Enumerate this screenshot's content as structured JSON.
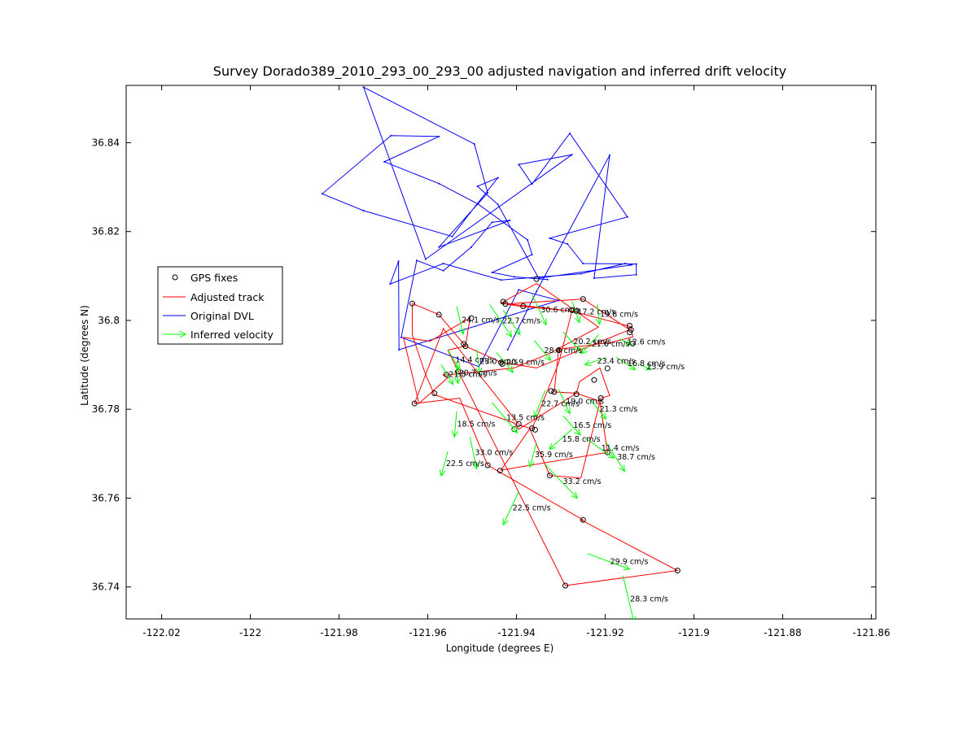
{
  "chart_data": {
    "type": "line",
    "title": "Survey Dorado389_2010_293_00_293_00 adjusted navigation and inferred drift velocity",
    "xlabel": "Longitude (degrees E)",
    "ylabel": "Latitude (degrees N)",
    "xlim": [
      -122.028,
      -121.859
    ],
    "ylim": [
      36.7328,
      36.8529
    ],
    "xticks": [
      -122.02,
      -122.0,
      -121.98,
      -121.96,
      -121.94,
      -121.92,
      -121.9,
      -121.88,
      -121.86
    ],
    "xtick_labels": [
      "-122.02",
      "-122",
      "-121.98",
      "-121.96",
      "-121.94",
      "-121.92",
      "-121.9",
      "-121.88",
      "-121.86"
    ],
    "yticks": [
      36.74,
      36.76,
      36.78,
      36.8,
      36.82,
      36.84
    ],
    "ytick_labels": [
      "36.74",
      "36.76",
      "36.78",
      "36.8",
      "36.82",
      "36.84"
    ],
    "grid": false,
    "legend_position": "left",
    "legend": [
      "GPS fixes",
      "Adjusted track",
      "Original DVL",
      "Inferred velocity"
    ],
    "colors": {
      "gps": "#000000",
      "adjusted": "#ff0000",
      "dvl": "#0000ff",
      "velocity": "#00ff00"
    },
    "dvl_track": [
      [
        -121.942,
        36.7934
      ],
      [
        -121.9355,
        36.8065
      ],
      [
        -121.919,
        36.8372
      ],
      [
        -121.9225,
        36.8095
      ],
      [
        -121.913,
        36.8103
      ],
      [
        -121.913,
        36.8127
      ],
      [
        -121.925,
        36.8128
      ],
      [
        -121.9285,
        36.8172
      ],
      [
        -121.9325,
        36.8185
      ],
      [
        -121.915,
        36.8233
      ],
      [
        -121.928,
        36.8421
      ],
      [
        -121.9365,
        36.8307
      ],
      [
        -121.9395,
        36.8351
      ],
      [
        -121.9275,
        36.8373
      ],
      [
        -121.9605,
        36.8138
      ],
      [
        -121.9745,
        36.8525
      ],
      [
        -121.9495,
        36.8397
      ],
      [
        -121.9465,
        36.8287
      ],
      [
        -121.9575,
        36.8165
      ],
      [
        -121.9415,
        36.8225
      ],
      [
        -121.9455,
        36.8221
      ],
      [
        -121.9502,
        36.8165
      ],
      [
        -121.9565,
        36.8112
      ],
      [
        -121.9625,
        36.8135
      ],
      [
        -121.966,
        36.7962
      ],
      [
        -121.9485,
        36.7896
      ],
      [
        -121.9395,
        36.8069
      ],
      [
        -121.9305,
        36.8045
      ],
      [
        -121.9665,
        36.7934
      ],
      [
        -121.9666,
        36.8133
      ],
      [
        -121.9685,
        36.8082
      ],
      [
        -121.9565,
        36.8128
      ],
      [
        -121.9435,
        36.8091
      ],
      [
        -121.9255,
        36.8105
      ],
      [
        -121.9155,
        36.8128
      ],
      [
        -121.914,
        36.8125
      ],
      [
        -121.935,
        36.8095
      ],
      [
        -121.9442,
        36.8261
      ],
      [
        -121.9488,
        36.8302
      ],
      [
        -121.9442,
        36.8321
      ],
      [
        -121.9505,
        36.8242
      ],
      [
        -121.9545,
        36.8189
      ],
      [
        -121.9745,
        36.8247
      ],
      [
        -121.9838,
        36.8285
      ],
      [
        -121.9683,
        36.8416
      ],
      [
        -121.9575,
        36.8414
      ],
      [
        -121.9698,
        36.8357
      ],
      [
        -121.9575,
        36.8308
      ],
      [
        -121.9487,
        36.8262
      ],
      [
        -121.9375,
        36.8181
      ],
      [
        -121.9365,
        36.8148
      ],
      [
        -121.9455,
        36.8108
      ],
      [
        -121.9405,
        36.8098
      ],
      [
        -121.933,
        36.8092
      ]
    ],
    "adjusted_track": [
      [
        -121.929,
        36.7403
      ],
      [
        -121.9037,
        36.7437
      ],
      [
        -121.9255,
        36.7551
      ],
      [
        -121.925,
        36.7551
      ],
      [
        -121.9465,
        36.7674
      ],
      [
        -121.9528,
        36.7825
      ],
      [
        -121.963,
        36.7813
      ],
      [
        -121.9565,
        36.7982
      ],
      [
        -121.9555,
        36.7967
      ],
      [
        -121.9393,
        36.7764
      ],
      [
        -121.9365,
        36.7756
      ],
      [
        -121.9305,
        36.7904
      ],
      [
        -121.9275,
        36.8021
      ],
      [
        -121.9393,
        36.8032
      ],
      [
        -121.9425,
        36.8037
      ],
      [
        -121.925,
        36.8048
      ],
      [
        -121.9145,
        36.7979
      ],
      [
        -121.9355,
        36.7893
      ],
      [
        -121.9435,
        36.7906
      ],
      [
        -121.9515,
        36.7942
      ],
      [
        -121.9575,
        36.8013
      ],
      [
        -121.9635,
        36.8038
      ],
      [
        -121.9635,
        36.7967
      ],
      [
        -121.9605,
        36.7878
      ],
      [
        -121.9585,
        36.7833
      ],
      [
        -121.9405,
        36.7769
      ],
      [
        -121.9395,
        36.7755
      ],
      [
        -121.9265,
        36.7836
      ],
      [
        -121.9258,
        36.7862
      ],
      [
        -121.9212,
        36.7893
      ],
      [
        -121.919,
        36.7831
      ],
      [
        -121.921,
        36.7825
      ],
      [
        -121.9255,
        36.7645
      ],
      [
        -121.9325,
        36.7651
      ],
      [
        -121.937,
        36.7756
      ],
      [
        -121.9435,
        36.7663
      ],
      [
        -121.9195,
        36.7703
      ],
      [
        -121.9212,
        36.7818
      ],
      [
        -121.9265,
        36.7836
      ],
      [
        -121.9315,
        36.7839
      ],
      [
        -121.9305,
        36.7935
      ],
      [
        -121.9185,
        36.7951
      ],
      [
        -121.9138,
        36.7963
      ],
      [
        -121.9142,
        36.7986
      ],
      [
        -121.9275,
        36.8021
      ],
      [
        -121.9435,
        36.8039
      ],
      [
        -121.9355,
        36.8083
      ],
      [
        -121.9215,
        36.7985
      ],
      [
        -121.9325,
        36.7926
      ],
      [
        -121.9405,
        36.7893
      ],
      [
        -121.955,
        36.7878
      ],
      [
        -121.9565,
        36.7877
      ],
      [
        -121.9555,
        36.7871
      ],
      [
        -121.962,
        36.7813
      ],
      [
        -121.9655,
        36.7962
      ],
      [
        -121.9595,
        36.7953
      ],
      [
        -121.9505,
        36.8006
      ],
      [
        -121.9515,
        36.7942
      ],
      [
        -121.9555,
        36.7933
      ],
      [
        -121.929,
        36.7403
      ]
    ],
    "gps_fixes": [
      [
        -121.929,
        36.7403
      ],
      [
        -121.9037,
        36.7437
      ],
      [
        -121.925,
        36.7551
      ],
      [
        -121.9465,
        36.7674
      ],
      [
        -121.9437,
        36.7662
      ],
      [
        -121.9325,
        36.7651
      ],
      [
        -121.9195,
        36.7703
      ],
      [
        -121.9405,
        36.7755
      ],
      [
        -121.9395,
        36.7767
      ],
      [
        -121.9365,
        36.7757
      ],
      [
        -121.9358,
        36.7754
      ],
      [
        -121.963,
        36.7813
      ],
      [
        -121.9585,
        36.7836
      ],
      [
        -121.921,
        36.7825
      ],
      [
        -121.9265,
        36.7834
      ],
      [
        -121.9315,
        36.7839
      ],
      [
        -121.9322,
        36.7841
      ],
      [
        -121.9558,
        36.7878
      ],
      [
        -121.9532,
        36.7885
      ],
      [
        -121.9195,
        36.7892
      ],
      [
        -121.9225,
        36.7866
      ],
      [
        -121.9435,
        36.7905
      ],
      [
        -121.9432,
        36.7902
      ],
      [
        -121.9305,
        36.7933
      ],
      [
        -121.9515,
        36.7942
      ],
      [
        -121.9519,
        36.7947
      ],
      [
        -121.9138,
        36.7948
      ],
      [
        -121.9145,
        36.7973
      ],
      [
        -121.9142,
        36.7979
      ],
      [
        -121.9145,
        36.7988
      ],
      [
        -121.9502,
        36.8005
      ],
      [
        -121.9575,
        36.8013
      ],
      [
        -121.9635,
        36.8038
      ],
      [
        -121.9385,
        36.8032
      ],
      [
        -121.9425,
        36.8037
      ],
      [
        -121.943,
        36.8042
      ],
      [
        -121.9275,
        36.8023
      ],
      [
        -121.9265,
        36.8021
      ],
      [
        -121.925,
        36.8048
      ],
      [
        -121.9355,
        36.8093
      ]
    ],
    "velocity_arrows": [
      {
        "x": -121.9555,
        "y": 36.7934,
        "u": 0.0027,
        "v": -0.0045,
        "label": "14.4 cm/s"
      },
      {
        "x": -121.957,
        "y": 36.7901,
        "u": 0.0027,
        "v": -0.0045,
        "label": "21.5 cm/s"
      },
      {
        "x": -121.9535,
        "y": 36.7905,
        "u": 0.0003,
        "v": -0.0047,
        "label": "20.7 cm/s"
      },
      {
        "x": -121.949,
        "y": 36.7935,
        "u": 0.0007,
        "v": -0.0055,
        "label": "23.0 cm/s"
      },
      {
        "x": -121.9535,
        "y": 36.8032,
        "u": 0.0015,
        "v": -0.0063,
        "label": "24.1 cm/s"
      },
      {
        "x": -121.946,
        "y": 36.8035,
        "u": 0.0049,
        "v": -0.0072,
        "label": "22.7 cm/s"
      },
      {
        "x": -121.943,
        "y": 36.8023,
        "u": 0.0038,
        "v": -0.0055,
        "label": ""
      },
      {
        "x": -121.9445,
        "y": 36.7928,
        "u": 0.0037,
        "v": -0.0045,
        "label": "20.9 cm/s"
      },
      {
        "x": -121.9365,
        "y": 36.8058,
        "u": 0.0032,
        "v": -0.0068,
        "label": "30.6 cm/s"
      },
      {
        "x": -121.936,
        "y": 36.7955,
        "u": 0.0037,
        "v": -0.0045,
        "label": "28.4 cm/s"
      },
      {
        "x": -121.9275,
        "y": 36.8043,
        "u": 0.0017,
        "v": -0.0048,
        "label": "17.2 cm/s"
      },
      {
        "x": -121.9218,
        "y": 36.8036,
        "u": 0.0005,
        "v": -0.0045,
        "label": "19.8 cm/s"
      },
      {
        "x": -121.9295,
        "y": 36.7974,
        "u": 0.0039,
        "v": -0.0043,
        "label": "20.2 cm/s"
      },
      {
        "x": -121.9215,
        "y": 36.7968,
        "u": -0.0039,
        "v": -0.0043,
        "label": "21.6 cm/s"
      },
      {
        "x": -121.9168,
        "y": 36.7958,
        "u": 0.0028,
        "v": -0.0013,
        "label": "12.6 cm/s"
      },
      {
        "x": -121.9198,
        "y": 36.7916,
        "u": -0.0048,
        "v": -0.0016,
        "label": "23.4 cm/s"
      },
      {
        "x": -121.9175,
        "y": 36.7917,
        "u": 0.0043,
        "v": -0.0028,
        "label": "16.8 cm/s"
      },
      {
        "x": -121.9125,
        "y": 36.7902,
        "u": 0.0029,
        "v": -0.0013,
        "label": "23.9 cm/s"
      },
      {
        "x": -121.9335,
        "y": 36.7843,
        "u": -0.0025,
        "v": -0.0061,
        "label": "22.7 cm/s"
      },
      {
        "x": -121.9305,
        "y": 36.7845,
        "u": 0.0025,
        "v": -0.0055,
        "label": "19.0 cm/s"
      },
      {
        "x": -121.9235,
        "y": 36.7823,
        "u": 0.0037,
        "v": -0.0045,
        "label": "21.3 cm/s"
      },
      {
        "x": -121.9455,
        "y": 36.7815,
        "u": 0.0057,
        "v": -0.0068,
        "label": "13.5 cm/s"
      },
      {
        "x": -121.9535,
        "y": 36.7795,
        "u": -0.0005,
        "v": -0.0057,
        "label": "18.5 cm/s"
      },
      {
        "x": -121.9295,
        "y": 36.7785,
        "u": 0.0039,
        "v": -0.0043,
        "label": "16.5 cm/s"
      },
      {
        "x": -121.9275,
        "y": 36.7755,
        "u": -0.0051,
        "v": -0.0045,
        "label": "15.8 cm/s"
      },
      {
        "x": -121.9245,
        "y": 36.7735,
        "u": 0.0065,
        "v": -0.0045,
        "label": "11.4 cm/s"
      },
      {
        "x": -121.9198,
        "y": 36.7725,
        "u": 0.0042,
        "v": -0.0065,
        "label": "38.7 cm/s"
      },
      {
        "x": -121.9505,
        "y": 36.7738,
        "u": 0.0015,
        "v": -0.0072,
        "label": "33.0 cm/s"
      },
      {
        "x": -121.9555,
        "y": 36.7705,
        "u": -0.0015,
        "v": -0.0055,
        "label": "22.5 cm/s"
      },
      {
        "x": -121.9355,
        "y": 36.7725,
        "u": -0.0015,
        "v": -0.0055,
        "label": "35.9 cm/s"
      },
      {
        "x": -121.9335,
        "y": 36.7675,
        "u": 0.0072,
        "v": -0.0075,
        "label": "33.2 cm/s"
      },
      {
        "x": -121.9395,
        "y": 36.7615,
        "u": -0.0035,
        "v": -0.0075,
        "label": "22.5 cm/s"
      },
      {
        "x": -121.924,
        "y": 36.7475,
        "u": 0.0095,
        "v": -0.0035,
        "label": "29.9 cm/s"
      },
      {
        "x": -121.916,
        "y": 36.7425,
        "u": 0.0025,
        "v": -0.0105,
        "label": "28.3 cm/s"
      }
    ]
  }
}
